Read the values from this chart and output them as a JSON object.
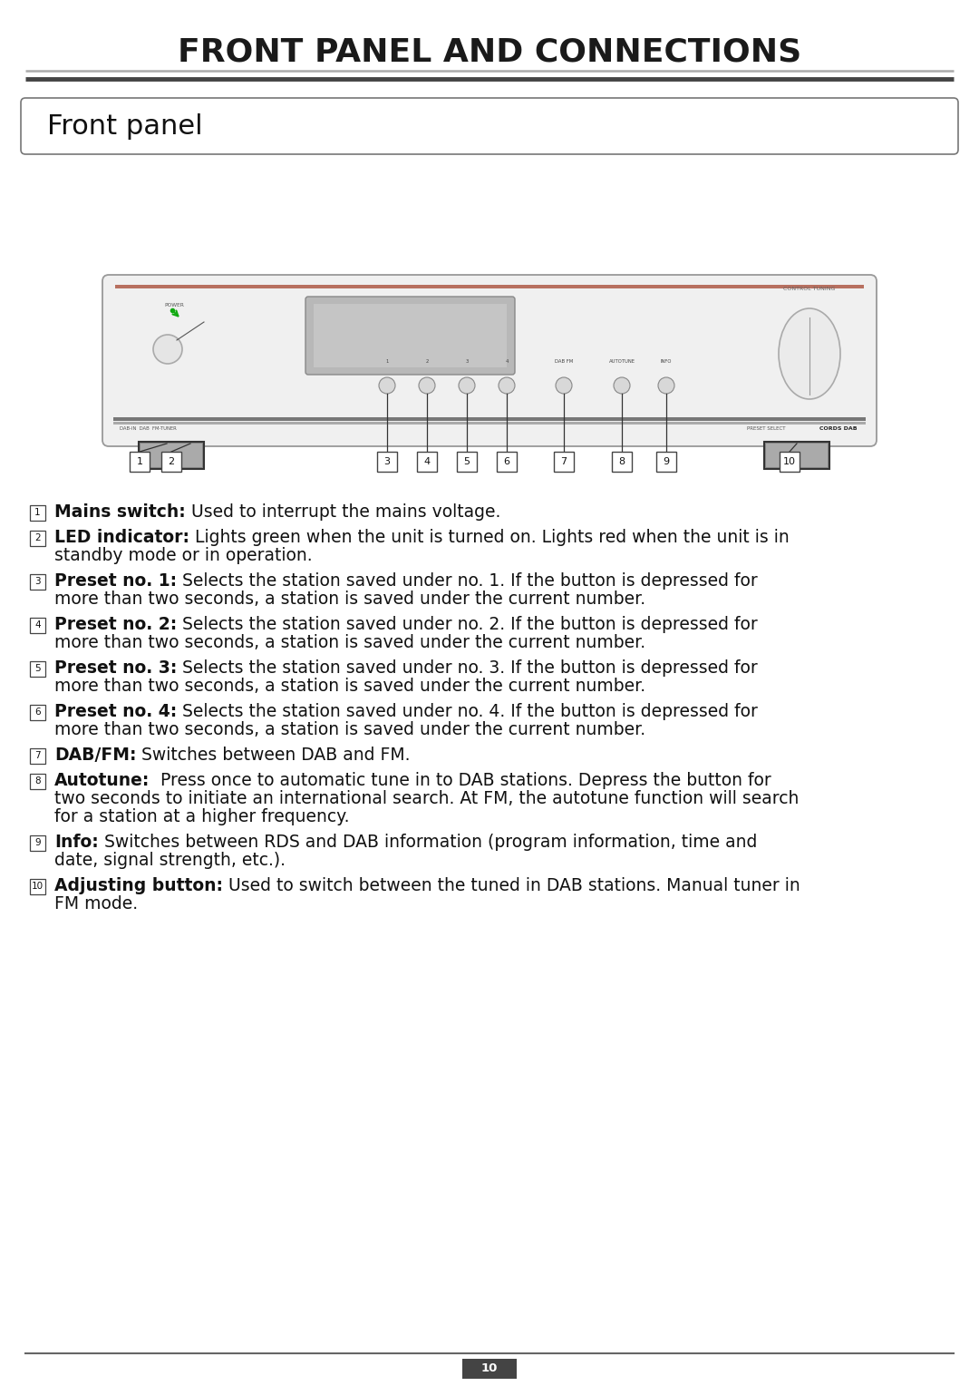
{
  "title": "FRONT PANEL AND CONNECTIONS",
  "section": "Front panel",
  "page_number": "10",
  "bg": "#ffffff",
  "title_fs": 26,
  "section_fs": 22,
  "body_fs": 13.5,
  "items": [
    {
      "num": "1",
      "bold": "Mains switch:",
      "text": " Used to interrupt the mains voltage.",
      "lines": 1
    },
    {
      "num": "2",
      "bold": "LED indicator:",
      "text": " Lights green when the unit is turned on. Lights red when the unit is in\nstandby mode or in operation.",
      "lines": 2
    },
    {
      "num": "3",
      "bold": "Preset no. 1:",
      "text": " Selects the station saved under no. 1. If the button is depressed for\nmore than two seconds, a station is saved under the current number.",
      "lines": 2
    },
    {
      "num": "4",
      "bold": "Preset no. 2:",
      "text": " Selects the station saved under no. 2. If the button is depressed for\nmore than two seconds, a station is saved under the current number.",
      "lines": 2
    },
    {
      "num": "5",
      "bold": "Preset no. 3:",
      "text": " Selects the station saved under no. 3. If the button is depressed for\nmore than two seconds, a station is saved under the current number.",
      "lines": 2
    },
    {
      "num": "6",
      "bold": "Preset no. 4:",
      "text": " Selects the station saved under no. 4. If the button is depressed for\nmore than two seconds, a station is saved under the current number.",
      "lines": 2
    },
    {
      "num": "7",
      "bold": "DAB/FM:",
      "text": " Switches between DAB and FM.",
      "lines": 1
    },
    {
      "num": "8",
      "bold": "Autotune:",
      "text": "  Press once to automatic tune in to DAB stations. Depress the button for\ntwo seconds to initiate an international search. At FM, the autotune function will search\nfor a station at a higher frequency.",
      "lines": 3
    },
    {
      "num": "9",
      "bold": "Info:",
      "text": " Switches between RDS and DAB information (program information, time and\ndate, signal strength, etc.).",
      "lines": 2
    },
    {
      "num": "10",
      "bold": "Adjusting button:",
      "text": " Used to switch between the tuned in DAB stations. Manual tuner in\nFM mode.",
      "lines": 2
    }
  ]
}
